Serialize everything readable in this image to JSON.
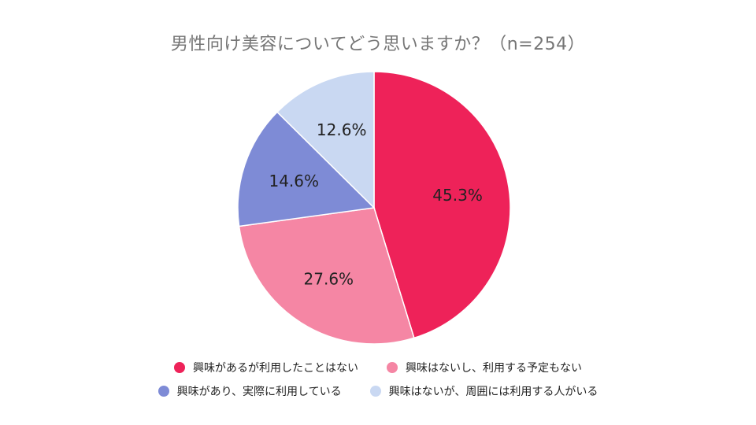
{
  "chart_data": {
    "type": "pie",
    "title": "男性向け美容についてどう思いますか？（n=254）",
    "slices": [
      {
        "name": "興味があるが利用したことはない",
        "value": 45.3,
        "label": "45.3%",
        "color": "#ee2259"
      },
      {
        "name": "興味はないし、利用する予定もない",
        "value": 27.6,
        "label": "27.6%",
        "color": "#f586a4"
      },
      {
        "name": "興味があり、実際に利用している",
        "value": 14.6,
        "label": "14.6%",
        "color": "#7e8bd6"
      },
      {
        "name": "興味はないが、周囲には利用する人がいる",
        "value": 12.6,
        "label": "12.6%",
        "color": "#c9d8f2"
      }
    ],
    "legend_placement": "bottom"
  }
}
